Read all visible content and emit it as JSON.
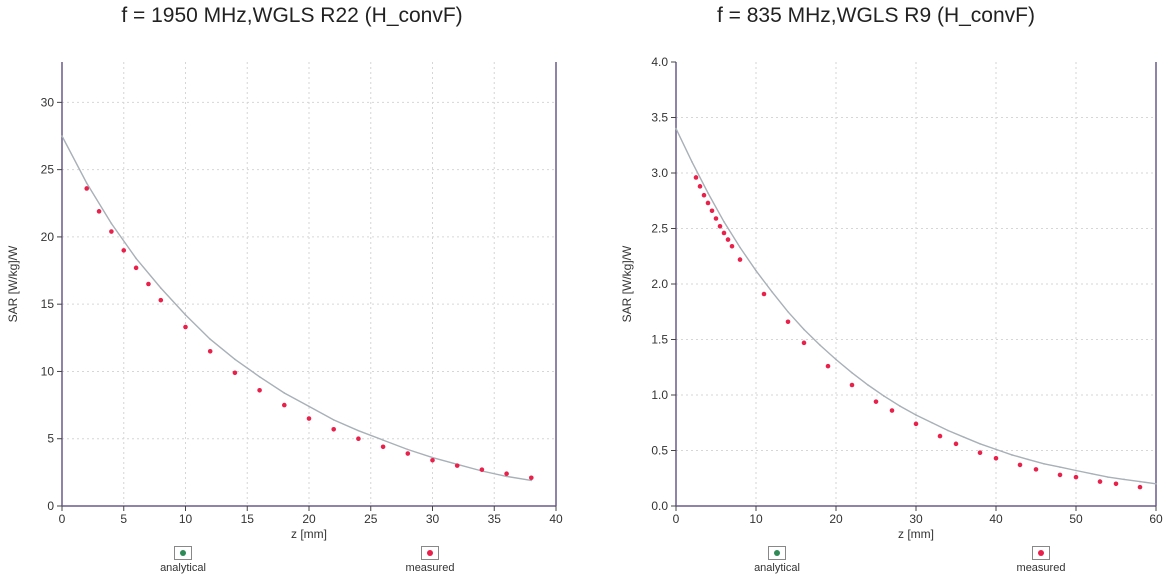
{
  "colors": {
    "analytical": "#2e8b57",
    "measured": "#e8204a",
    "curve": "#a8b0b8",
    "axis": "#6a5a8a",
    "grid": "#d6d6d6"
  },
  "legend": {
    "analytical": "analytical",
    "measured": "measured"
  },
  "chart_data": [
    {
      "type": "line",
      "title": "f = 1950 MHz,WGLS R22 (H_convF)",
      "xlabel": "z [mm]",
      "ylabel": "SAR [W/kg]/W",
      "xlim": [
        0,
        40
      ],
      "ylim": [
        0,
        33
      ],
      "xticks": [
        0,
        5,
        10,
        15,
        20,
        25,
        30,
        35,
        40
      ],
      "yticks": [
        0,
        5,
        10,
        15,
        20,
        25,
        30
      ],
      "grid": true,
      "series": [
        {
          "name": "analytical",
          "x": [
            0,
            2,
            4,
            6,
            8,
            10,
            12,
            14,
            16,
            18,
            20,
            22,
            24,
            26,
            28,
            30,
            32,
            34,
            36,
            38
          ],
          "values": [
            27.5,
            24.0,
            21.0,
            18.4,
            16.2,
            14.2,
            12.4,
            10.9,
            9.6,
            8.4,
            7.4,
            6.4,
            5.6,
            4.9,
            4.2,
            3.6,
            3.1,
            2.6,
            2.2,
            1.9
          ]
        },
        {
          "name": "measured",
          "x": [
            2,
            3,
            4,
            5,
            6,
            7,
            8,
            10,
            12,
            14,
            16,
            18,
            20,
            22,
            24,
            26,
            28,
            30,
            32,
            34,
            36,
            38
          ],
          "values": [
            23.6,
            21.9,
            20.4,
            19.0,
            17.7,
            16.5,
            15.3,
            13.3,
            11.5,
            9.9,
            8.6,
            7.5,
            6.5,
            5.7,
            5.0,
            4.4,
            3.9,
            3.4,
            3.0,
            2.7,
            2.4,
            2.1
          ]
        }
      ]
    },
    {
      "type": "line",
      "title": "f = 835 MHz,WGLS R9 (H_convF)",
      "xlabel": "z [mm]",
      "ylabel": "SAR [W/kg]/W",
      "xlim": [
        0,
        60
      ],
      "ylim": [
        0,
        4.0
      ],
      "xticks": [
        0,
        10,
        20,
        30,
        40,
        50,
        60
      ],
      "yticks": [
        0.0,
        0.5,
        1.0,
        1.5,
        2.0,
        2.5,
        3.0,
        3.5,
        4.0
      ],
      "grid": true,
      "series": [
        {
          "name": "analytical",
          "x": [
            0,
            2,
            4,
            6,
            8,
            10,
            12,
            14,
            16,
            18,
            20,
            22,
            24,
            26,
            28,
            30,
            32,
            34,
            36,
            38,
            40,
            42,
            44,
            46,
            48,
            50,
            52,
            54,
            56,
            58,
            60
          ],
          "values": [
            3.4,
            3.1,
            2.82,
            2.56,
            2.33,
            2.12,
            1.93,
            1.75,
            1.59,
            1.45,
            1.32,
            1.2,
            1.09,
            0.99,
            0.9,
            0.82,
            0.75,
            0.68,
            0.62,
            0.56,
            0.51,
            0.46,
            0.42,
            0.38,
            0.35,
            0.32,
            0.29,
            0.26,
            0.24,
            0.22,
            0.2
          ]
        },
        {
          "name": "measured",
          "x": [
            2.5,
            3,
            3.5,
            4,
            4.5,
            5,
            5.5,
            6,
            6.5,
            7,
            8,
            11,
            14,
            16,
            19,
            22,
            25,
            27,
            30,
            33,
            35,
            38,
            40,
            43,
            45,
            48,
            50,
            53,
            55,
            58
          ],
          "values": [
            2.96,
            2.88,
            2.8,
            2.73,
            2.66,
            2.59,
            2.52,
            2.46,
            2.4,
            2.34,
            2.22,
            1.91,
            1.66,
            1.47,
            1.26,
            1.09,
            0.94,
            0.86,
            0.74,
            0.63,
            0.56,
            0.48,
            0.43,
            0.37,
            0.33,
            0.28,
            0.26,
            0.22,
            0.2,
            0.17
          ]
        }
      ]
    }
  ]
}
